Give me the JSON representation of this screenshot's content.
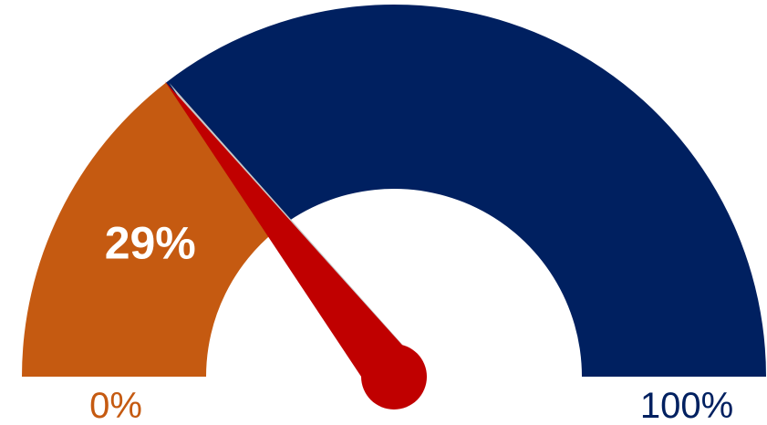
{
  "chart_data": {
    "type": "gauge",
    "value": 29,
    "value_label": "29%",
    "min": 0,
    "max": 100,
    "min_label": "0%",
    "max_label": "100%",
    "colors": {
      "filled": "#C55A11",
      "remaining": "#002060",
      "needle": "#C00000",
      "needle_shadow": "#C8C8C8",
      "min_label": "#C55A11",
      "max_label": "#002060"
    }
  }
}
